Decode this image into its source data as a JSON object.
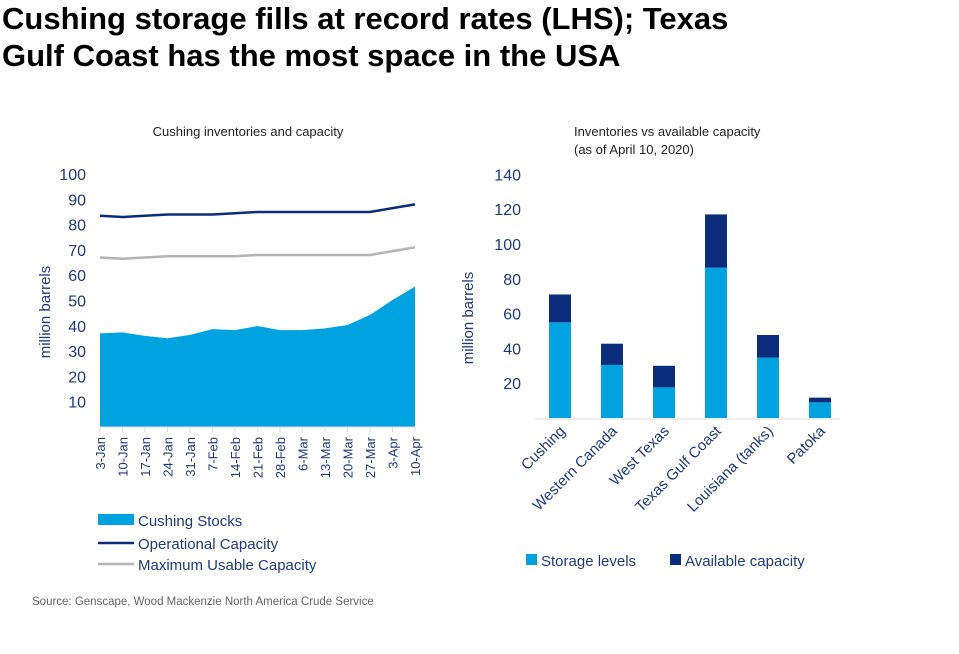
{
  "title_line1": "Cushing storage fills at record rates (LHS); Texas",
  "title_line2": "Gulf Coast has the most space in the USA",
  "source": "Source: Genscape, Wood Mackenzie North America Crude Service",
  "colors": {
    "light_blue": "#00a3e0",
    "dark_blue": "#0b2c7a",
    "grey": "#b4b4b4",
    "axis_text": "#1e3a78"
  },
  "chart_data": [
    {
      "type": "area",
      "title": "Cushing inventories and capacity",
      "ylabel": "million barrels",
      "ylim": [
        0,
        100
      ],
      "yticks": [
        10,
        20,
        30,
        40,
        50,
        60,
        70,
        80,
        90,
        100
      ],
      "x": [
        "3-Jan",
        "10-Jan",
        "17-Jan",
        "24-Jan",
        "31-Jan",
        "7-Feb",
        "14-Feb",
        "21-Feb",
        "28-Feb",
        "6-Mar",
        "13-Mar",
        "20-Mar",
        "27-Mar",
        "3-Apr",
        "10-Apr"
      ],
      "legend_position": "bottom",
      "series": [
        {
          "name": "Cushing Stocks",
          "kind": "area",
          "values": [
            37.0,
            37.4,
            36.0,
            35.1,
            36.4,
            38.7,
            38.3,
            39.9,
            38.3,
            38.3,
            39.0,
            40.3,
            44.3,
            50.2,
            55.5
          ]
        },
        {
          "name": "Operational Capacity",
          "kind": "line",
          "values": [
            83.5,
            83,
            83.5,
            84,
            84,
            84,
            84.5,
            85,
            85,
            85,
            85,
            85,
            85,
            86.5,
            88
          ]
        },
        {
          "name": "Maximum Usable Capacity",
          "kind": "line",
          "values": [
            67,
            66.5,
            67,
            67.5,
            67.5,
            67.5,
            67.5,
            68,
            68,
            68,
            68,
            68,
            68,
            69.5,
            71
          ]
        }
      ]
    },
    {
      "type": "bar",
      "stacked": true,
      "title_line1": "Inventories vs available capacity",
      "title_line2": "(as of April 10, 2020)",
      "ylabel": "million barrels",
      "ylim": [
        0,
        140
      ],
      "yticks": [
        20,
        40,
        60,
        80,
        100,
        120,
        140
      ],
      "categories": [
        "Cushing",
        "Western Canada",
        "West Texas",
        "Texas Gulf Coast",
        "Louisiana (tanks)",
        "Patoka"
      ],
      "legend_position": "bottom",
      "series": [
        {
          "name": "Storage levels",
          "values": [
            55,
            30.5,
            17.6,
            86.4,
            34.7,
            9
          ]
        },
        {
          "name": "Available capacity",
          "values": [
            16,
            12.2,
            12.4,
            30.6,
            13,
            2.7
          ]
        }
      ]
    }
  ]
}
